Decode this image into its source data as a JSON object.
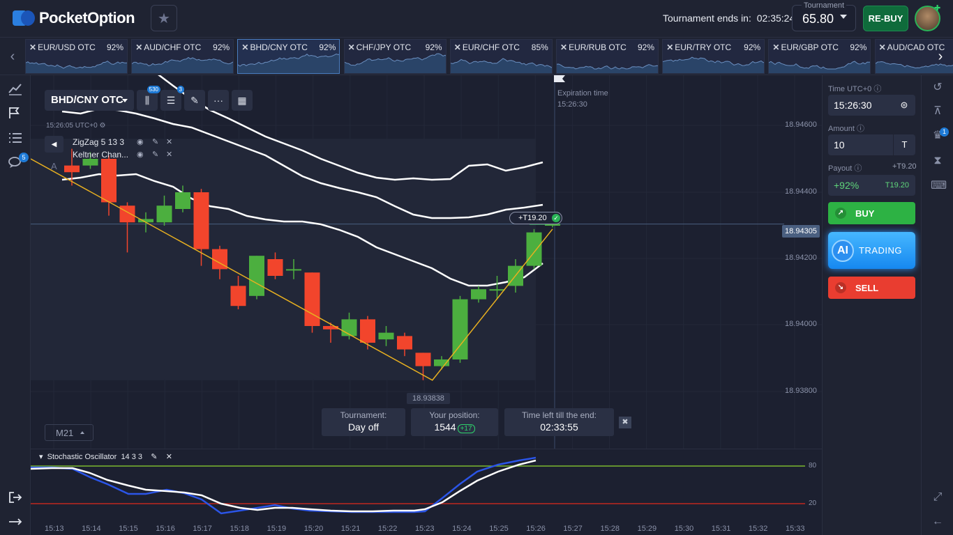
{
  "header": {
    "brand": "PocketOption",
    "tournament_ends_label": "Tournament ends in:",
    "tournament_ends_time": "02:35:24",
    "tournament_label": "Tournament",
    "tournament_balance": "65.80",
    "rebuy_label": "RE-BUY"
  },
  "pairs": [
    {
      "name": "EUR/USD OTC",
      "pct": "92%"
    },
    {
      "name": "AUD/CHF OTC",
      "pct": "92%"
    },
    {
      "name": "BHD/CNY OTC",
      "pct": "92%"
    },
    {
      "name": "CHF/JPY OTC",
      "pct": "92%"
    },
    {
      "name": "EUR/CHF OTC",
      "pct": "85%"
    },
    {
      "name": "EUR/RUB OTC",
      "pct": "92%"
    },
    {
      "name": "EUR/TRY OTC",
      "pct": "92%"
    },
    {
      "name": "EUR/GBP OTC",
      "pct": "92%"
    },
    {
      "name": "AUD/CAD OTC",
      "pct": ""
    }
  ],
  "left_sidebar": {
    "chat_badge": "5"
  },
  "chart": {
    "asset": "BHD/CNY OTC",
    "badge_candles": "530",
    "badge_indicators": "3",
    "server_time": "15:26:05 UTC+0",
    "indicators": [
      {
        "name": "ZigZag 5 13 3"
      },
      {
        "name": "Keltner Chan..."
      }
    ],
    "expiration_label": "Expiration time",
    "expiration_time": "15:26:30",
    "current_price": "18.94305",
    "low_price": "18.93838",
    "y_ticks": [
      "18.94600",
      "18.94400",
      "18.94200",
      "18.94000",
      "18.93800"
    ],
    "trade_tag": "+T19.20",
    "timeframe": "M21",
    "tournament_info": {
      "tournament_label": "Tournament:",
      "tournament_value": "Day off",
      "position_label": "Your position:",
      "position_value": "1544",
      "position_change": "+17",
      "time_left_label": "Time left till the end:",
      "time_left_value": "02:33:55"
    },
    "candles": [
      {
        "o": 18.9448,
        "c": 18.9446,
        "h": 18.9453,
        "l": 18.9442
      },
      {
        "o": 18.9448,
        "c": 18.945,
        "h": 18.9452,
        "l": 18.9447
      },
      {
        "o": 18.945,
        "c": 18.9437,
        "h": 18.9451,
        "l": 18.9433
      },
      {
        "o": 18.9436,
        "c": 18.9431,
        "h": 18.9437,
        "l": 18.9422
      },
      {
        "o": 18.9431,
        "c": 18.9432,
        "h": 18.9434,
        "l": 18.9428
      },
      {
        "o": 18.9431,
        "c": 18.9436,
        "h": 18.9439,
        "l": 18.943
      },
      {
        "o": 18.9435,
        "c": 18.944,
        "h": 18.9442,
        "l": 18.9434
      },
      {
        "o": 18.944,
        "c": 18.9423,
        "h": 18.9441,
        "l": 18.9418
      },
      {
        "o": 18.9423,
        "c": 18.9417,
        "h": 18.9424,
        "l": 18.9414
      },
      {
        "o": 18.9412,
        "c": 18.9406,
        "h": 18.9415,
        "l": 18.9405
      },
      {
        "o": 18.9409,
        "c": 18.9421,
        "h": 18.9421,
        "l": 18.9408
      },
      {
        "o": 18.942,
        "c": 18.9415,
        "h": 18.9422,
        "l": 18.9414
      },
      {
        "o": 18.9417,
        "c": 18.9417,
        "h": 18.942,
        "l": 18.9414
      },
      {
        "o": 18.9416,
        "c": 18.94,
        "h": 18.9416,
        "l": 18.9398
      },
      {
        "o": 18.94,
        "c": 18.9399,
        "h": 18.9401,
        "l": 18.9395
      },
      {
        "o": 18.9397,
        "c": 18.9402,
        "h": 18.9404,
        "l": 18.9396
      },
      {
        "o": 18.9402,
        "c": 18.9395,
        "h": 18.9403,
        "l": 18.9393
      },
      {
        "o": 18.9396,
        "c": 18.9398,
        "h": 18.94,
        "l": 18.9394
      },
      {
        "o": 18.9397,
        "c": 18.9393,
        "h": 18.9398,
        "l": 18.9391
      },
      {
        "o": 18.9392,
        "c": 18.9388,
        "h": 18.9392,
        "l": 18.93838
      },
      {
        "o": 18.9388,
        "c": 18.939,
        "h": 18.9391,
        "l": 18.9387
      },
      {
        "o": 18.939,
        "c": 18.9408,
        "h": 18.9409,
        "l": 18.9389
      },
      {
        "o": 18.9408,
        "c": 18.9411,
        "h": 18.9412,
        "l": 18.9407
      },
      {
        "o": 18.9411,
        "c": 18.9411,
        "h": 18.9415,
        "l": 18.9408
      },
      {
        "o": 18.9412,
        "c": 18.9418,
        "h": 18.942,
        "l": 18.941
      },
      {
        "o": 18.9418,
        "c": 18.9428,
        "h": 18.9429,
        "l": 18.9417
      },
      {
        "o": 18.943,
        "c": 18.94305,
        "h": 18.9431,
        "l": 18.94295
      }
    ]
  },
  "oscillator": {
    "label": "Stochastic Oscillator",
    "params": "14 3 3",
    "level_high": "80",
    "level_low": "20"
  },
  "x_ticks": [
    "15:13",
    "15:14",
    "15:15",
    "15:16",
    "15:17",
    "15:18",
    "15:19",
    "15:20",
    "15:21",
    "15:22",
    "15:23",
    "15:24",
    "15:25",
    "15:26",
    "15:27",
    "15:28",
    "15:29",
    "15:30",
    "15:31",
    "15:32",
    "15:33"
  ],
  "trade_panel": {
    "time_label": "Time UTC+0",
    "time_value": "15:26:30",
    "amount_label": "Amount",
    "amount_value": "10",
    "amount_currency": "T",
    "payout_label": "Payout",
    "payout_amount": "+T9.20",
    "payout_pct": "+92%",
    "payout_total": "T19.20",
    "buy_label": "BUY",
    "ai_label": "AI",
    "ai_text": "TRADING",
    "sell_label": "SELL"
  },
  "right_bar": {
    "trophy_badge": "1"
  },
  "colors": {
    "bull": "#4caf3f",
    "bear": "#f2452c",
    "zigzag": "#e8b020",
    "accent": "#1e7ad6"
  }
}
